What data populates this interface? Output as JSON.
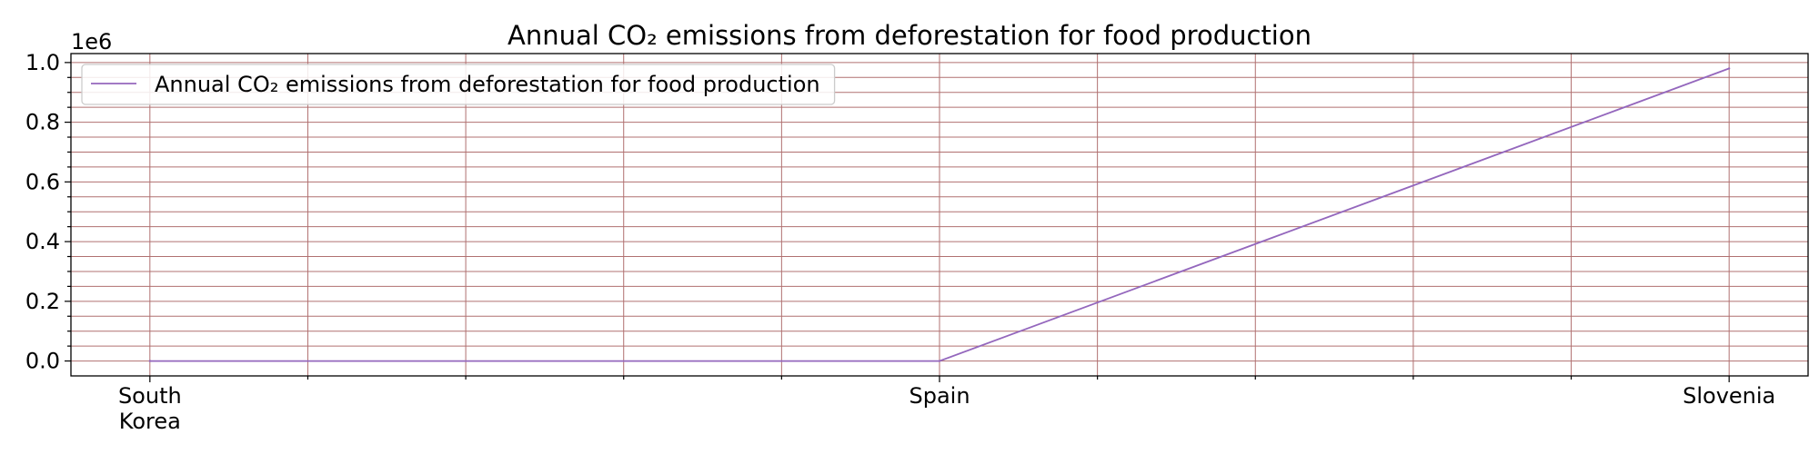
{
  "chart_data": {
    "type": "line",
    "title": "Annual CO₂ emissions from deforestation for food production",
    "xlabel": "",
    "ylabel": "",
    "categories": [
      "South Korea",
      "Spain",
      "Slovenia"
    ],
    "series": [
      {
        "name": "Annual CO₂ emissions from deforestation for food production",
        "values": [
          0,
          0,
          980000
        ],
        "color": "#9467bd"
      }
    ],
    "ylim": [
      -50000,
      1030000
    ],
    "y_ticks": [
      0,
      200000,
      400000,
      600000,
      800000,
      1000000
    ],
    "y_tick_labels": [
      "0.0",
      "0.2",
      "0.4",
      "0.6",
      "0.8",
      "1.0"
    ],
    "y_offset_label": "1e6",
    "grid": true,
    "grid_color": "#b07070",
    "legend_position": "top-left"
  }
}
